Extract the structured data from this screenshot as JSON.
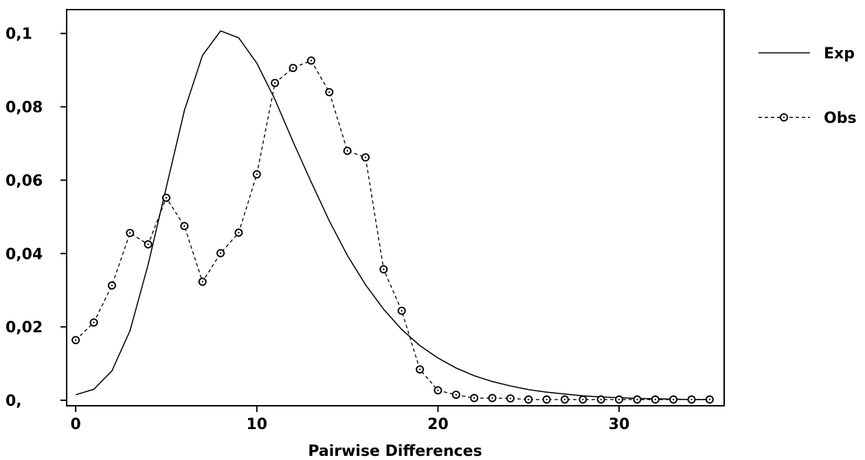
{
  "chart_data": {
    "type": "line",
    "title": "",
    "xlabel": "Pairwise Differences",
    "ylabel": "",
    "xlim": [
      -0.5,
      35.8
    ],
    "ylim": [
      -0.0015,
      0.1065
    ],
    "xticks": [
      0,
      10,
      20,
      30
    ],
    "xtick_labels": [
      "0",
      "10",
      "20",
      "30"
    ],
    "yticks": [
      0,
      0.02,
      0.04,
      0.06,
      0.08,
      0.1
    ],
    "ytick_labels": [
      "0,",
      "0,02",
      "0,04",
      "0,06",
      "0,08",
      "0,1"
    ],
    "grid": false,
    "legend_position": "right",
    "series": [
      {
        "name": "Exp",
        "style": "solid",
        "x": [
          0,
          1,
          2,
          3,
          4,
          5,
          6,
          7,
          8,
          9,
          10,
          11,
          12,
          13,
          14,
          15,
          16,
          17,
          18,
          19,
          20,
          21,
          22,
          23,
          24,
          25,
          26,
          27,
          28,
          29,
          30,
          31,
          32,
          33,
          34,
          35
        ],
        "values": [
          0.0015,
          0.003,
          0.008,
          0.019,
          0.037,
          0.058,
          0.079,
          0.094,
          0.1007,
          0.0988,
          0.0919,
          0.082,
          0.0705,
          0.0595,
          0.0489,
          0.0395,
          0.0315,
          0.0248,
          0.0193,
          0.0149,
          0.0115,
          0.0088,
          0.0067,
          0.0051,
          0.0039,
          0.0029,
          0.0022,
          0.0017,
          0.0012,
          0.0009,
          0.0007,
          0.0005,
          0.0004,
          0.0003,
          0.0002,
          0.0002
        ]
      },
      {
        "name": "Obs",
        "style": "dashed-circle-markers",
        "x": [
          0,
          1,
          2,
          3,
          4,
          5,
          6,
          7,
          8,
          9,
          10,
          11,
          12,
          13,
          14,
          15,
          16,
          17,
          18,
          19,
          20,
          21,
          22,
          23,
          24,
          25,
          26,
          27,
          28,
          29,
          30,
          31,
          32,
          33,
          34,
          35
        ],
        "values": [
          0.0164,
          0.0212,
          0.0313,
          0.0456,
          0.0425,
          0.0552,
          0.0475,
          0.0323,
          0.0401,
          0.0457,
          0.0616,
          0.0865,
          0.0906,
          0.0926,
          0.084,
          0.068,
          0.0662,
          0.0357,
          0.0244,
          0.0084,
          0.0027,
          0.0015,
          0.0006,
          0.0006,
          0.0005,
          0.0002,
          0.0002,
          0.0002,
          0.0002,
          0.0002,
          0.0002,
          0.0002,
          0.0002,
          0.0002,
          0.0002,
          0.0002
        ]
      }
    ]
  },
  "legend": [
    {
      "name": "Exp"
    },
    {
      "name": "Obs"
    }
  ]
}
